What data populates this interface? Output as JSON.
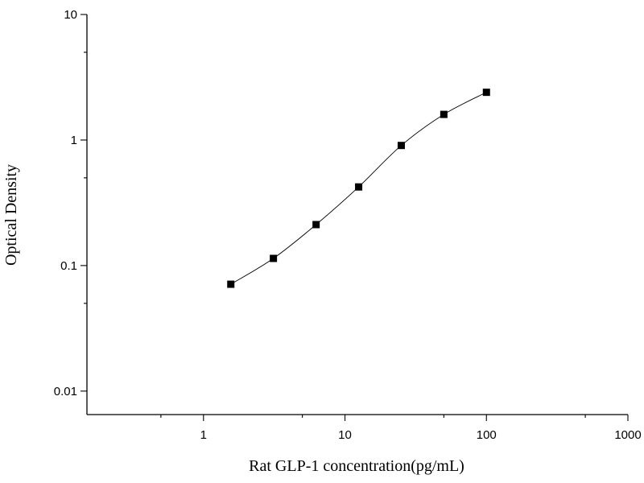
{
  "chart_data": {
    "type": "scatter",
    "title": "",
    "xlabel": "Rat GLP-1 concentration(pg/mL)",
    "ylabel": "Optical Density",
    "x_scale": "log",
    "y_scale": "log",
    "xlim": [
      0.15,
      1000
    ],
    "ylim": [
      0.0065,
      10
    ],
    "x_ticks": [
      {
        "value": 1,
        "label": "1"
      },
      {
        "value": 10,
        "label": "10"
      },
      {
        "value": 100,
        "label": "100"
      },
      {
        "value": 1000,
        "label": "1000"
      }
    ],
    "y_ticks": [
      {
        "value": 0.01,
        "label": "0.01"
      },
      {
        "value": 0.1,
        "label": "0.1"
      },
      {
        "value": 1,
        "label": "1"
      },
      {
        "value": 10,
        "label": "10"
      }
    ],
    "grid": false,
    "legend": "none",
    "fit_curve": true,
    "series": [
      {
        "x": [
          1.56,
          3.12,
          6.25,
          12.5,
          25,
          50,
          100
        ],
        "y": [
          0.071,
          0.114,
          0.212,
          0.423,
          0.905,
          1.6,
          2.4
        ]
      }
    ]
  }
}
